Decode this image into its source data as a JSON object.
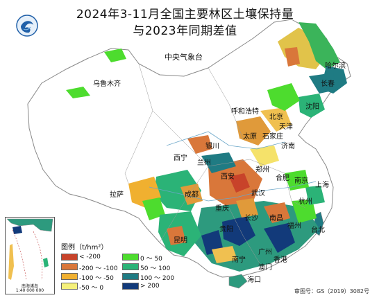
{
  "title_line1": "2024年3-11月全国主要林区土壤保持量",
  "title_line2": "与2023年同期差值",
  "agency": "中央气象台",
  "legend": {
    "title": "图例（t/hm²）",
    "items": [
      {
        "label": "< -200",
        "color": "#c8432a"
      },
      {
        "label": "-200 ～ -100",
        "color": "#d9773a"
      },
      {
        "label": "-100 ～ -50",
        "color": "#f0b030"
      },
      {
        "label": "-50 ～ 0",
        "color": "#f5f07a"
      },
      {
        "label": "0 ～ 50",
        "color": "#4ddc2e"
      },
      {
        "label": "50 ～ 100",
        "color": "#2bb377"
      },
      {
        "label": "100 ～ 200",
        "color": "#1f7b83"
      },
      {
        "label": "> 200",
        "color": "#123a7a"
      }
    ]
  },
  "cities": [
    {
      "name": "乌鲁木齐"
    },
    {
      "name": "哈尔滨"
    },
    {
      "name": "长春"
    },
    {
      "name": "沈阳"
    },
    {
      "name": "呼和浩特"
    },
    {
      "name": "北京"
    },
    {
      "name": "天津"
    },
    {
      "name": "太原"
    },
    {
      "name": "石家庄"
    },
    {
      "name": "济南"
    },
    {
      "name": "银川"
    },
    {
      "name": "西宁"
    },
    {
      "name": "兰州"
    },
    {
      "name": "郑州"
    },
    {
      "name": "西安"
    },
    {
      "name": "合肥"
    },
    {
      "name": "南京"
    },
    {
      "name": "上海"
    },
    {
      "name": "武汉"
    },
    {
      "name": "杭州"
    },
    {
      "name": "拉萨"
    },
    {
      "name": "成都"
    },
    {
      "name": "重庆"
    },
    {
      "name": "长沙"
    },
    {
      "name": "南昌"
    },
    {
      "name": "福州"
    },
    {
      "name": "台北"
    },
    {
      "name": "贵阳"
    },
    {
      "name": "昆明"
    },
    {
      "name": "南宁"
    },
    {
      "name": "广州"
    },
    {
      "name": "香港"
    },
    {
      "name": "澳门"
    },
    {
      "name": "海口"
    }
  ],
  "inset_label": "南海诸岛",
  "inset_scale": "1:40 000 000",
  "approval": "审图号：GS（2019）3082号"
}
